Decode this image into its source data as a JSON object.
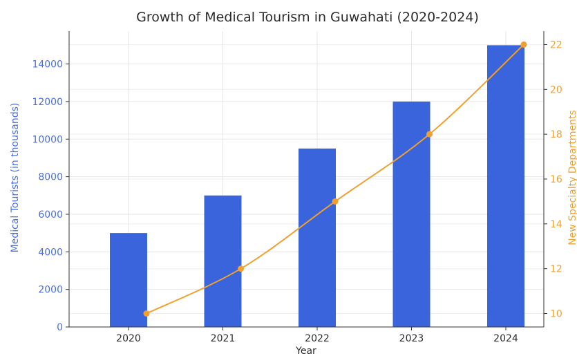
{
  "chart_data": {
    "type": "bar+line",
    "title": "Growth of Medical Tourism in Guwahati (2020-2024)",
    "xlabel": "Year",
    "categories": [
      "2020",
      "2021",
      "2022",
      "2023",
      "2024"
    ],
    "bar_series": {
      "name": "Medical Tourists (in thousands)",
      "values": [
        5000,
        7000,
        9500,
        12000,
        15000
      ],
      "color": "#3a64dc"
    },
    "line_series": {
      "name": "New Specialty Departments",
      "values": [
        10,
        12,
        15,
        18,
        22
      ],
      "color": "#f0a030"
    },
    "ylabel_left": "Medical Tourists (in thousands)",
    "ylabel_right": "New Specialty Departments",
    "ylim_left": [
      0,
      15750
    ],
    "yticks_left": [
      0,
      2000,
      4000,
      6000,
      8000,
      10000,
      12000,
      14000
    ],
    "ylim_right": [
      9.4,
      22.6
    ],
    "yticks_right": [
      10,
      12,
      14,
      16,
      18,
      20,
      22
    ],
    "left_axis_color": "#4a6fdc",
    "right_axis_color": "#f0a030",
    "grid": true,
    "legend": "none"
  }
}
